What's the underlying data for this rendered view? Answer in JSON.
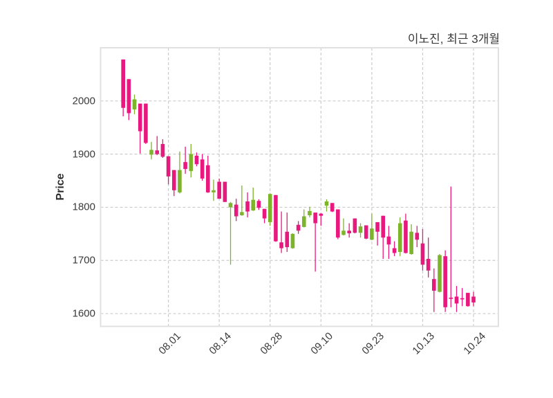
{
  "header": {
    "title": "이노진, 최근 3개월"
  },
  "chart_data": {
    "type": "candlestick",
    "title": "이노진, 최근 3개월",
    "xlabel": "",
    "ylabel": "Price",
    "grid": "dashed",
    "legend": "none",
    "yticks": [
      1600,
      1700,
      1800,
      1900,
      2000
    ],
    "ylim": [
      1576,
      2100
    ],
    "xtick_labels": [
      "08.01",
      "08.14",
      "08.28",
      "09.10",
      "09.23",
      "10.13",
      "10.24"
    ],
    "xtick_indices": [
      8,
      17,
      26,
      35,
      44,
      53,
      62
    ],
    "num_candles": 63,
    "xlim_indices": [
      -4,
      66.4
    ],
    "colors": {
      "up": "#7DB42C",
      "down": "#E8197E",
      "grid": "#cbcbcb",
      "border": "#e0e0e0",
      "text": "#3a3a3a",
      "background": "#ffffff"
    },
    "candles_format": [
      "open",
      "high",
      "low",
      "close"
    ],
    "candles": [
      [
        2078,
        2078,
        1971,
        1987
      ],
      [
        2041,
        2041,
        1964,
        1977
      ],
      [
        1984,
        2012,
        1975,
        2003
      ],
      [
        1995,
        1995,
        1901,
        1943
      ],
      [
        1995,
        1995,
        1919,
        1921
      ],
      [
        1899,
        1923,
        1890,
        1908
      ],
      [
        1907,
        1934,
        1898,
        1900
      ],
      [
        1919,
        1928,
        1893,
        1895
      ],
      [
        1896,
        1896,
        1843,
        1858
      ],
      [
        1870,
        1870,
        1821,
        1832
      ],
      [
        1828,
        1905,
        1826,
        1870
      ],
      [
        1885,
        1914,
        1863,
        1872
      ],
      [
        1868,
        1919,
        1856,
        1900
      ],
      [
        1897,
        1903,
        1877,
        1881
      ],
      [
        1890,
        1900,
        1850,
        1854
      ],
      [
        1879,
        1897,
        1827,
        1828
      ],
      [
        1828,
        1852,
        1812,
        1832
      ],
      [
        1848,
        1854,
        1816,
        1816
      ],
      [
        1848,
        1848,
        1810,
        1810
      ],
      [
        1800,
        1810,
        1692,
        1808
      ],
      [
        1805,
        1816,
        1774,
        1783
      ],
      [
        1785,
        1841,
        1784,
        1791
      ],
      [
        1811,
        1828,
        1781,
        1792
      ],
      [
        1794,
        1837,
        1793,
        1814
      ],
      [
        1812,
        1815,
        1795,
        1799
      ],
      [
        1797,
        1797,
        1770,
        1779
      ],
      [
        1772,
        1826,
        1765,
        1825
      ],
      [
        1823,
        1823,
        1735,
        1736
      ],
      [
        1734,
        1792,
        1714,
        1723
      ],
      [
        1754,
        1790,
        1716,
        1725
      ],
      [
        1723,
        1751,
        1722,
        1750
      ],
      [
        1767,
        1774,
        1750,
        1756
      ],
      [
        1763,
        1796,
        1762,
        1783
      ],
      [
        1785,
        1801,
        1781,
        1793
      ],
      [
        1790,
        1790,
        1679,
        1770
      ],
      [
        1788,
        1789,
        1765,
        1784
      ],
      [
        1803,
        1815,
        1792,
        1811
      ],
      [
        1808,
        1808,
        1791,
        1792
      ],
      [
        1796,
        1796,
        1740,
        1743
      ],
      [
        1748,
        1779,
        1747,
        1756
      ],
      [
        1756,
        1770,
        1743,
        1751
      ],
      [
        1779,
        1779,
        1751,
        1752
      ],
      [
        1752,
        1770,
        1743,
        1764
      ],
      [
        1766,
        1766,
        1740,
        1741
      ],
      [
        1739,
        1788,
        1738,
        1760
      ],
      [
        1772,
        1772,
        1728,
        1754
      ],
      [
        1784,
        1784,
        1703,
        1743
      ],
      [
        1745,
        1765,
        1703,
        1730
      ],
      [
        1723,
        1736,
        1708,
        1714
      ],
      [
        1716,
        1781,
        1708,
        1770
      ],
      [
        1775,
        1788,
        1713,
        1714
      ],
      [
        1712,
        1768,
        1711,
        1754
      ],
      [
        1752,
        1765,
        1725,
        1739
      ],
      [
        1732,
        1759,
        1681,
        1692
      ],
      [
        1703,
        1743,
        1668,
        1681
      ],
      [
        1665,
        1685,
        1603,
        1643
      ],
      [
        1641,
        1712,
        1640,
        1710
      ],
      [
        1708,
        1719,
        1603,
        1612
      ],
      [
        1630,
        1839,
        1612,
        1628
      ],
      [
        1632,
        1652,
        1603,
        1619
      ],
      [
        1629,
        1648,
        1614,
        1628
      ],
      [
        1639,
        1639,
        1613,
        1614
      ],
      [
        1632,
        1641,
        1614,
        1621
      ]
    ]
  }
}
